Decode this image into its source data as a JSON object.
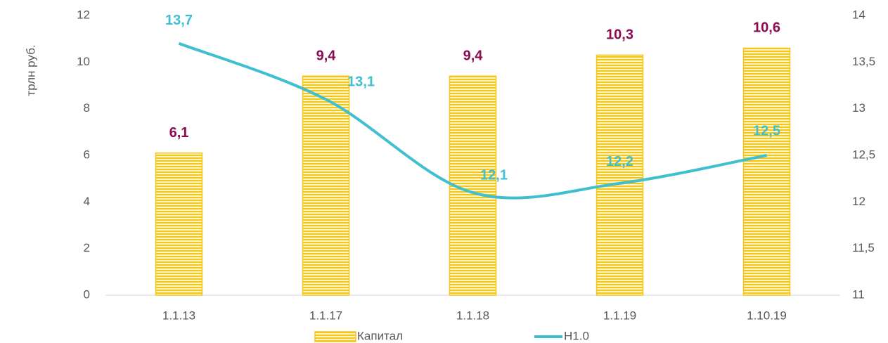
{
  "chart_data": {
    "type": "bar_line",
    "y_label": "трлн руб.",
    "categories": [
      "1.1.13",
      "1.1.17",
      "1.1.18",
      "1.1.19",
      "1.10.19"
    ],
    "series": [
      {
        "name": "Капитал",
        "type": "bar",
        "color": "#f5c518",
        "label_color": "#8b0a50",
        "values": [
          6.1,
          9.4,
          9.4,
          10.3,
          10.6
        ],
        "value_labels": [
          "6,1",
          "9,4",
          "9,4",
          "10,3",
          "10,6"
        ]
      },
      {
        "name": "Н1.0",
        "type": "line",
        "axis": "y2",
        "color": "#3fbfcf",
        "label_color": "#3fbfcf",
        "values": [
          13.7,
          13.1,
          12.1,
          12.2,
          12.5
        ],
        "value_labels": [
          "13,7",
          "13,1",
          "12,1",
          "12,2",
          "12,5"
        ]
      }
    ],
    "ylim": [
      0,
      12
    ],
    "yticks": [
      0,
      2,
      4,
      6,
      8,
      10,
      12
    ],
    "y2lim": [
      11,
      14
    ],
    "y2ticks": [
      11,
      {
        "value": 11.5,
        "label": "11,5"
      },
      12,
      {
        "value": 12.5,
        "label": "12,5"
      },
      13,
      {
        "value": 13.5,
        "label": "13,5"
      },
      14
    ],
    "legend": "bottom"
  }
}
